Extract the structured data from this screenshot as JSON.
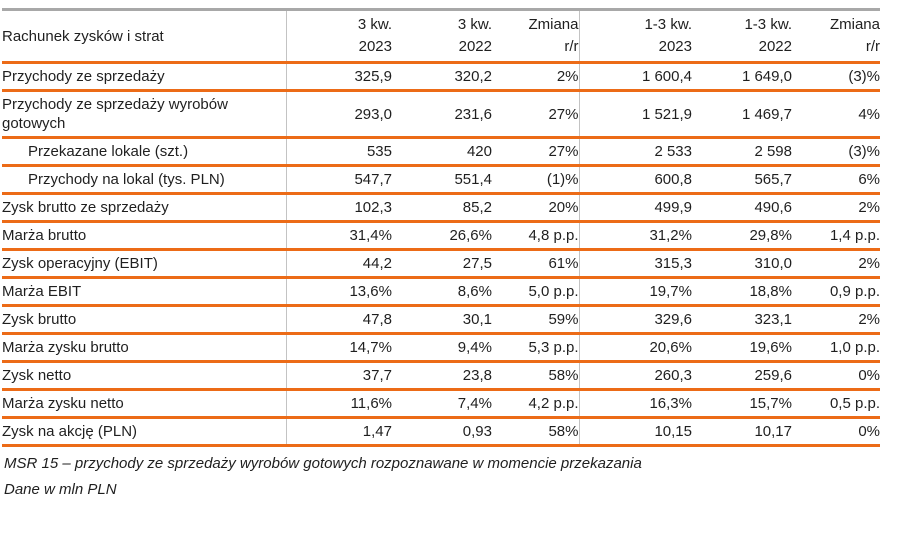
{
  "colors": {
    "accent_orange": "#EC6B17",
    "top_border_gray": "#A8A8A8",
    "vertical_line_gray": "#C3C3C3",
    "text": "#1F1F1F"
  },
  "table": {
    "header": {
      "label": "Rachunek zysków i strat",
      "columns": [
        "3 kw.\n2023",
        "3 kw.\n2022",
        "Zmiana\nr/r",
        "1-3 kw.\n2023",
        "1-3 kw.\n2022",
        "Zmiana\nr/r"
      ]
    },
    "rows": [
      {
        "label": "Przychody ze sprzedaży",
        "indent": false,
        "values": [
          "325,9",
          "320,2",
          "2%",
          "1 600,4",
          "1 649,0",
          "(3)%"
        ]
      },
      {
        "label": "Przychody ze sprzedaży wyrobów gotowych",
        "indent": false,
        "values": [
          "293,0",
          "231,6",
          "27%",
          "1 521,9",
          "1 469,7",
          "4%"
        ]
      },
      {
        "label": "Przekazane lokale (szt.)",
        "indent": true,
        "values": [
          "535",
          "420",
          "27%",
          "2 533",
          "2 598",
          "(3)%"
        ]
      },
      {
        "label": "Przychody na lokal (tys. PLN)",
        "indent": true,
        "values": [
          "547,7",
          "551,4",
          "(1)%",
          "600,8",
          "565,7",
          "6%"
        ]
      },
      {
        "label": "Zysk brutto ze sprzedaży",
        "indent": false,
        "values": [
          "102,3",
          "85,2",
          "20%",
          "499,9",
          "490,6",
          "2%"
        ]
      },
      {
        "label": "Marża brutto",
        "indent": false,
        "values": [
          "31,4%",
          "26,6%",
          "4,8 p.p.",
          "31,2%",
          "29,8%",
          "1,4 p.p."
        ]
      },
      {
        "label": "Zysk operacyjny (EBIT)",
        "indent": false,
        "values": [
          "44,2",
          "27,5",
          "61%",
          "315,3",
          "310,0",
          "2%"
        ]
      },
      {
        "label": "Marża EBIT",
        "indent": false,
        "values": [
          "13,6%",
          "8,6%",
          "5,0 p.p.",
          "19,7%",
          "18,8%",
          "0,9 p.p."
        ]
      },
      {
        "label": "Zysk brutto",
        "indent": false,
        "values": [
          "47,8",
          "30,1",
          "59%",
          "329,6",
          "323,1",
          "2%"
        ]
      },
      {
        "label": "Marża zysku brutto",
        "indent": false,
        "values": [
          "14,7%",
          "9,4%",
          "5,3 p.p.",
          "20,6%",
          "19,6%",
          "1,0 p.p."
        ]
      },
      {
        "label": "Zysk netto",
        "indent": false,
        "values": [
          "37,7",
          "23,8",
          "58%",
          "260,3",
          "259,6",
          "0%"
        ]
      },
      {
        "label": "Marża zysku netto",
        "indent": false,
        "values": [
          "11,6%",
          "7,4%",
          "4,2 p.p.",
          "16,3%",
          "15,7%",
          "0,5 p.p."
        ]
      },
      {
        "label": "Zysk na akcję (PLN)",
        "indent": false,
        "values": [
          "1,47",
          "0,93",
          "58%",
          "10,15",
          "10,17",
          "0%"
        ]
      }
    ]
  },
  "footnotes": [
    "MSR 15 – przychody ze sprzedaży wyrobów gotowych rozpoznawane w momencie przekazania",
    "Dane w mln PLN"
  ]
}
